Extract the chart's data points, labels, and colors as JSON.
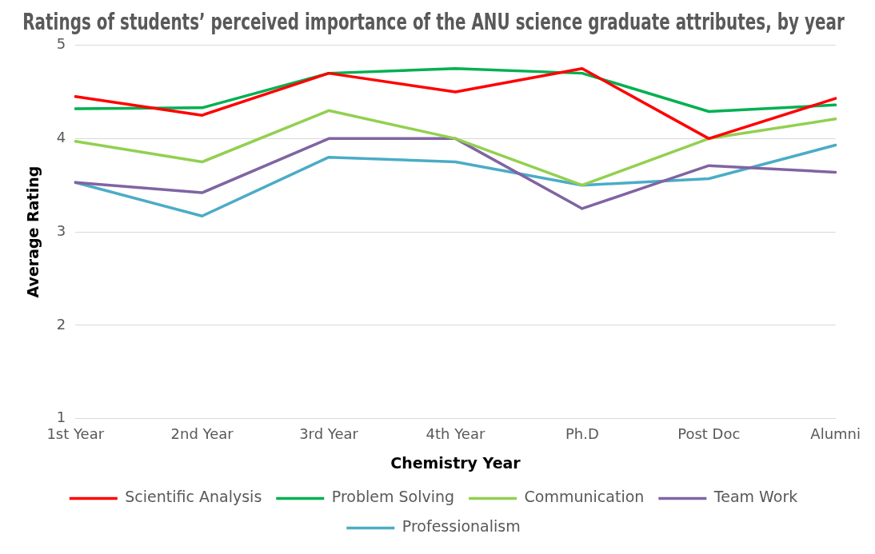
{
  "chart_data": {
    "type": "line",
    "title": "Ratings of students’ perceived importance of the ANU science graduate attributes, by year",
    "xlabel": "Chemistry Year",
    "ylabel": "Average Rating",
    "categories": [
      "1st Year",
      "2nd Year",
      "3rd Year",
      "4th Year",
      "Ph.D",
      "Post Doc",
      "Alumni"
    ],
    "series": [
      {
        "name": "Scientific Analysis",
        "color": "#ff0000",
        "values": [
          4.45,
          4.25,
          4.7,
          4.5,
          4.75,
          4.0,
          4.43
        ]
      },
      {
        "name": "Problem Solving",
        "color": "#00b050",
        "values": [
          4.32,
          4.33,
          4.7,
          4.75,
          4.7,
          4.29,
          4.36
        ]
      },
      {
        "name": "Communication",
        "color": "#92d050",
        "values": [
          3.97,
          3.75,
          4.3,
          4.0,
          3.5,
          4.0,
          4.21
        ]
      },
      {
        "name": "Team Work",
        "color": "#8064a2",
        "values": [
          3.53,
          3.42,
          4.0,
          4.0,
          3.25,
          3.71,
          3.64
        ]
      },
      {
        "name": "Professionalism",
        "color": "#4bacc6",
        "values": [
          3.53,
          3.17,
          3.8,
          3.75,
          3.5,
          3.57,
          3.93
        ]
      }
    ],
    "ylim": [
      1,
      5
    ],
    "yticks": [
      1,
      2,
      3,
      4,
      5
    ],
    "grid": "y",
    "legend": "bottom",
    "marker": "none",
    "line_style": "solid"
  }
}
